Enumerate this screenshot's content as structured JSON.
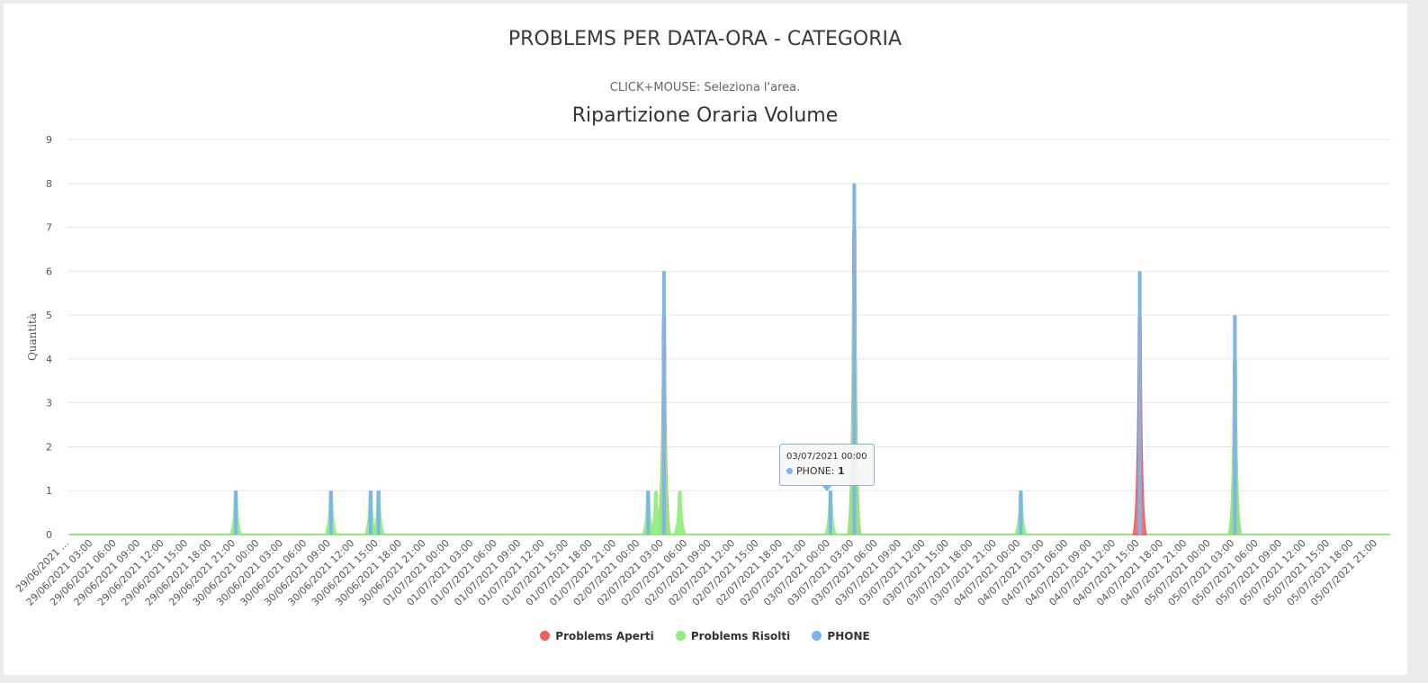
{
  "page": {
    "title": "PROBLEMS PER DATA-ORA - CATEGORIA",
    "hint": "CLICK+MOUSE: Seleziona l'area."
  },
  "tooltip": {
    "date": "03/07/2021 00:00",
    "series_label": "PHONE:",
    "value": "1"
  },
  "colors": {
    "aperti": "#f15c80",
    "aperti_legend": "#f45b5b",
    "risolti": "#90ed7d",
    "phone": "#7cb5ec",
    "grid": "#e6e6e6"
  },
  "chart_data": {
    "type": "area",
    "title": "Ripartizione Oraria Volume",
    "ylabel": "Quantità",
    "xlabel": "",
    "ylim": [
      0,
      9
    ],
    "yticks": [
      0,
      1,
      2,
      3,
      4,
      5,
      6,
      7,
      8,
      9
    ],
    "grid": true,
    "legend_position": "bottom-center",
    "xtick_labels": [
      "29/06/2021 ...",
      "29/06/2021 03:00",
      "29/06/2021 06:00",
      "29/06/2021 09:00",
      "29/06/2021 12:00",
      "29/06/2021 15:00",
      "29/06/2021 18:00",
      "29/06/2021 21:00",
      "30/06/2021 00:00",
      "30/06/2021 03:00",
      "30/06/2021 06:00",
      "30/06/2021 09:00",
      "30/06/2021 12:00",
      "30/06/2021 15:00",
      "30/06/2021 18:00",
      "30/06/2021 21:00",
      "01/07/2021 00:00",
      "01/07/2021 03:00",
      "01/07/2021 06:00",
      "01/07/2021 09:00",
      "01/07/2021 12:00",
      "01/07/2021 15:00",
      "01/07/2021 18:00",
      "01/07/2021 21:00",
      "02/07/2021 00:00",
      "02/07/2021 03:00",
      "02/07/2021 06:00",
      "02/07/2021 09:00",
      "02/07/2021 12:00",
      "02/07/2021 15:00",
      "02/07/2021 18:00",
      "02/07/2021 21:00",
      "03/07/2021 00:00",
      "03/07/2021 03:00",
      "03/07/2021 06:00",
      "03/07/2021 09:00",
      "03/07/2021 12:00",
      "03/07/2021 15:00",
      "03/07/2021 18:00",
      "03/07/2021 21:00",
      "04/07/2021 00:00",
      "04/07/2021 03:00",
      "04/07/2021 06:00",
      "04/07/2021 09:00",
      "04/07/2021 12:00",
      "04/07/2021 15:00",
      "04/07/2021 18:00",
      "04/07/2021 21:00",
      "05/07/2021 00:00",
      "05/07/2021 03:00",
      "05/07/2021 06:00",
      "05/07/2021 09:00",
      "05/07/2021 12:00",
      "05/07/2021 15:00",
      "05/07/2021 18:00",
      "05/07/2021 21:00"
    ],
    "series": [
      {
        "name": "Problems Aperti",
        "kind": "area",
        "points": [
          {
            "x": "02/07/2021 03:00",
            "y": 5
          },
          {
            "x": "03/07/2021 03:00",
            "y": 7
          },
          {
            "x": "04/07/2021 15:00",
            "y": 5
          },
          {
            "x": "05/07/2021 03:00",
            "y": 4
          }
        ]
      },
      {
        "name": "Problems Risolti",
        "kind": "area",
        "points": [
          {
            "x": "29/06/2021 21:00",
            "y": 1
          },
          {
            "x": "30/06/2021 09:00",
            "y": 1
          },
          {
            "x": "30/06/2021 14:00",
            "y": 1
          },
          {
            "x": "30/06/2021 15:00",
            "y": 1
          },
          {
            "x": "02/07/2021 01:00",
            "y": 1
          },
          {
            "x": "02/07/2021 02:00",
            "y": 1
          },
          {
            "x": "02/07/2021 03:00",
            "y": 4
          },
          {
            "x": "02/07/2021 05:00",
            "y": 1
          },
          {
            "x": "03/07/2021 00:00",
            "y": 1
          },
          {
            "x": "03/07/2021 03:00",
            "y": 6
          },
          {
            "x": "04/07/2021 00:00",
            "y": 1
          },
          {
            "x": "05/07/2021 03:00",
            "y": 4
          }
        ]
      },
      {
        "name": "PHONE",
        "kind": "column",
        "points": [
          {
            "x": "29/06/2021 21:00",
            "y": 1
          },
          {
            "x": "30/06/2021 09:00",
            "y": 1
          },
          {
            "x": "30/06/2021 14:00",
            "y": 1
          },
          {
            "x": "30/06/2021 15:00",
            "y": 1
          },
          {
            "x": "02/07/2021 01:00",
            "y": 1
          },
          {
            "x": "02/07/2021 03:00",
            "y": 6
          },
          {
            "x": "03/07/2021 00:00",
            "y": 1
          },
          {
            "x": "03/07/2021 03:00",
            "y": 8
          },
          {
            "x": "04/07/2021 00:00",
            "y": 1
          },
          {
            "x": "04/07/2021 15:00",
            "y": 6
          },
          {
            "x": "05/07/2021 03:00",
            "y": 5
          }
        ]
      }
    ]
  }
}
